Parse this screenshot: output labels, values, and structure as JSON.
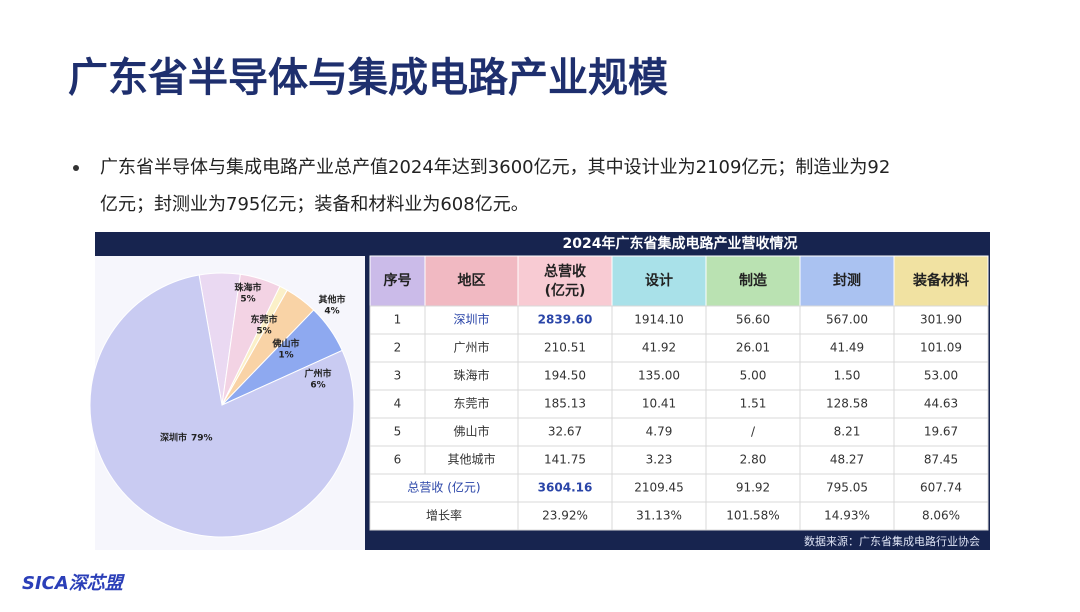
{
  "header": {
    "title": "广东省半导体与集成电路产业规模"
  },
  "bullet": {
    "lines": [
      "广东省半导体与集成电路产业总产值2024年达到3600亿元，其中设计业为2109亿元；制造业为92",
      "亿元；封测业为795亿元；装备和材料业为608亿元。"
    ]
  },
  "figure": {
    "title": "2024年广东省集成电路产业营收情况",
    "pie": {
      "type": "pie",
      "categories": [
        "珠海市",
        "东莞市",
        "佛山市",
        "其他市",
        "广州市",
        "深圳市"
      ],
      "values": [
        5,
        5,
        1,
        4,
        6,
        79
      ],
      "value_labels": [
        "5%",
        "5%",
        "1%",
        "4%",
        "6%",
        "79%"
      ],
      "colors": [
        "#ead9f2",
        "#f3d3e4",
        "#fbf0c8",
        "#f9d3a6",
        "#8ea9f0",
        "#c9cbf2"
      ]
    },
    "table": {
      "headers": [
        "序号",
        "地区",
        [
          "总营收",
          "(亿元)"
        ],
        "设计",
        "制造",
        "封测",
        "装备材料"
      ],
      "rows": [
        [
          "1",
          "深圳市",
          "2839.60",
          "1914.10",
          "56.60",
          "567.00",
          "301.90"
        ],
        [
          "2",
          "广州市",
          "210.51",
          "41.92",
          "26.01",
          "41.49",
          "101.09"
        ],
        [
          "3",
          "珠海市",
          "194.50",
          "135.00",
          "5.00",
          "1.50",
          "53.00"
        ],
        [
          "4",
          "东莞市",
          "185.13",
          "10.41",
          "1.51",
          "128.58",
          "44.63"
        ],
        [
          "5",
          "佛山市",
          "32.67",
          "4.79",
          "/",
          "8.21",
          "19.67"
        ],
        [
          "6",
          "其他城市",
          "141.75",
          "3.23",
          "2.80",
          "48.27",
          "87.45"
        ]
      ],
      "total": [
        "总营收 (亿元)",
        "3604.16",
        "2109.45",
        "91.92",
        "795.05",
        "607.74"
      ],
      "growth": [
        "增长率",
        "23.92%",
        "31.13%",
        "101.58%",
        "14.93%",
        "8.06%"
      ]
    },
    "source": "数据来源：广东省集成电路行业协会"
  },
  "footer": {
    "logo": "SICA深芯盟"
  }
}
